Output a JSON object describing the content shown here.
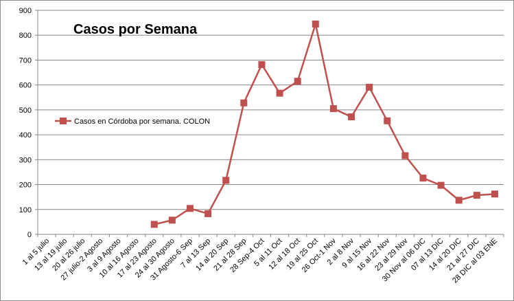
{
  "chart_data": {
    "type": "line",
    "title": "Casos por Semana",
    "xlabel": "",
    "ylabel": "",
    "ylim": [
      0,
      900
    ],
    "yticks": [
      0,
      100,
      200,
      300,
      400,
      500,
      600,
      700,
      800,
      900
    ],
    "grid": true,
    "legend_position": "left",
    "line_color": "#c0504d",
    "grid_color": "#868686",
    "categories": [
      "1 al 5 julio",
      "13 al 19 julio",
      "20 al 26 julio",
      "27 julio-2 Agosto",
      "3 al 9 Agosto",
      "10 al 16 Agosto",
      "17 al 23 Agosto",
      "24 al 30 Agosto",
      "31 Agosto-6 Sep",
      "7 al 13 Sep",
      "14 al 20 Sep",
      "21 al 28 Sep",
      "28 Sep-4 Oct",
      "5 al 11 Oct",
      "12 al 18 Oct",
      "19 al 25 Oct",
      "26 Oct-1 Nov",
      "2 al 8 Nov",
      "9 al 15 Nov",
      "16 al 22 Nov",
      "23 al 29 Nov",
      "30 Nov al 06 DIC",
      "07 al 13 DIC",
      "14 al 20 DIC",
      "21 al 27 DIC",
      "28 DIC al 03 ENE"
    ],
    "series": [
      {
        "name": "Casos en Córdoba por semana. COLON",
        "values": [
          null,
          null,
          null,
          null,
          null,
          null,
          40,
          57,
          104,
          83,
          217,
          528,
          682,
          567,
          615,
          845,
          505,
          472,
          591,
          456,
          316,
          226,
          197,
          137,
          157,
          162
        ]
      }
    ]
  }
}
